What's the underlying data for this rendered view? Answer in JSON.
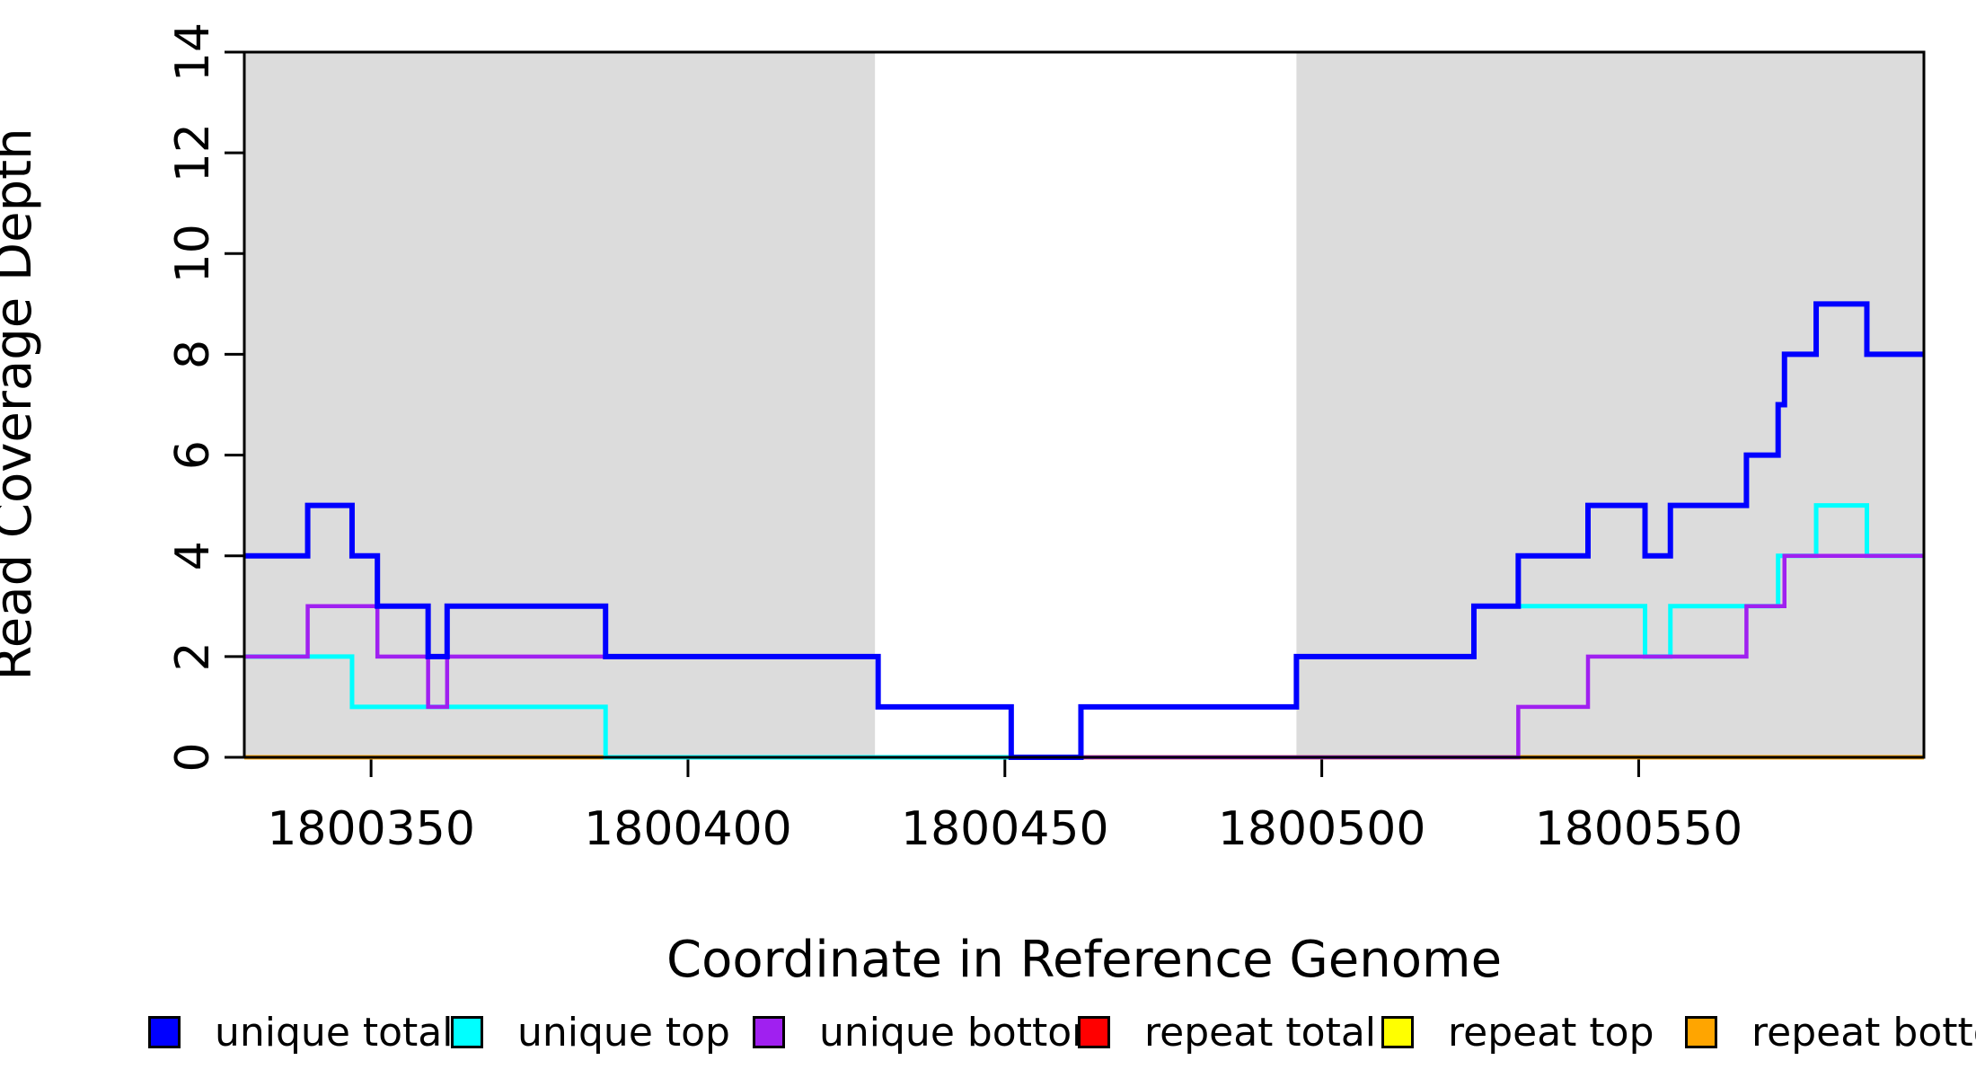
{
  "chart_data": {
    "type": "line",
    "subtype": "step-coverage-plot",
    "title": "",
    "xlabel": "Coordinate in Reference Genome",
    "ylabel": "Read Coverage Depth",
    "xlim": [
      1800330,
      1800595
    ],
    "ylim": [
      0,
      14
    ],
    "x_ticks": [
      "1800350",
      "1800400",
      "1800450",
      "1800500",
      "1800550"
    ],
    "x_tick_values": [
      1800350,
      1800400,
      1800450,
      1800500,
      1800550
    ],
    "y_ticks": [
      "0",
      "2",
      "4",
      "6",
      "8",
      "10",
      "12",
      "14"
    ],
    "y_tick_values": [
      0,
      2,
      4,
      6,
      8,
      10,
      12,
      14
    ],
    "grid": false,
    "legend_position": "bottom",
    "shaded_regions": [
      {
        "name": "left-gray-band",
        "x0": 1800330,
        "x1": 1800429.5,
        "color": "#DCDCDC"
      },
      {
        "name": "right-gray-band",
        "x0": 1800496,
        "x1": 1800595,
        "color": "#DCDCDC"
      }
    ],
    "series": [
      {
        "name": "repeat total",
        "color": "#FF0000",
        "width": 4.5,
        "steps": [
          [
            1800330,
            0
          ]
        ]
      },
      {
        "name": "repeat top",
        "color": "#FFFF00",
        "width": 4.5,
        "steps": [
          [
            1800330,
            0
          ]
        ]
      },
      {
        "name": "repeat bottom",
        "color": "#FFA500",
        "width": 4.5,
        "steps": [
          [
            1800330,
            0
          ]
        ]
      },
      {
        "name": "unique top",
        "color": "#00FFFF",
        "width": 5,
        "steps": [
          [
            1800330,
            2
          ],
          [
            1800347,
            1
          ],
          [
            1800387,
            0
          ],
          [
            1800462,
            1
          ],
          [
            1800496,
            2
          ],
          [
            1800524,
            3
          ],
          [
            1800551,
            2
          ],
          [
            1800555,
            3
          ],
          [
            1800572,
            4
          ],
          [
            1800578,
            5
          ],
          [
            1800586,
            4
          ]
        ]
      },
      {
        "name": "unique bottom",
        "color": "#A020F0",
        "width": 4.5,
        "steps": [
          [
            1800330,
            2
          ],
          [
            1800340,
            3
          ],
          [
            1800351,
            2
          ],
          [
            1800359,
            1
          ],
          [
            1800362,
            2
          ],
          [
            1800430,
            1
          ],
          [
            1800451,
            0
          ],
          [
            1800531,
            1
          ],
          [
            1800542,
            2
          ],
          [
            1800567,
            3
          ],
          [
            1800573,
            4
          ]
        ]
      },
      {
        "name": "unique total",
        "color": "#0000FF",
        "width": 6,
        "steps": [
          [
            1800330,
            4
          ],
          [
            1800340,
            5
          ],
          [
            1800347,
            4
          ],
          [
            1800351,
            3
          ],
          [
            1800359,
            2
          ],
          [
            1800362,
            3
          ],
          [
            1800387,
            2
          ],
          [
            1800430,
            1
          ],
          [
            1800451,
            0
          ],
          [
            1800462,
            1
          ],
          [
            1800496,
            2
          ],
          [
            1800524,
            3
          ],
          [
            1800531,
            4
          ],
          [
            1800542,
            5
          ],
          [
            1800551,
            4
          ],
          [
            1800555,
            5
          ],
          [
            1800567,
            6
          ],
          [
            1800572,
            7
          ],
          [
            1800573,
            8
          ],
          [
            1800578,
            9
          ],
          [
            1800586,
            8
          ]
        ]
      }
    ],
    "legend": [
      {
        "label": "unique total",
        "color": "#0000FF"
      },
      {
        "label": "unique top",
        "color": "#00FFFF"
      },
      {
        "label": "unique bottom",
        "color": "#A020F0"
      },
      {
        "label": "repeat total",
        "color": "#FF0000"
      },
      {
        "label": "repeat top",
        "color": "#FFFF00"
      },
      {
        "label": "repeat bottom",
        "color": "#FFA500"
      }
    ]
  }
}
